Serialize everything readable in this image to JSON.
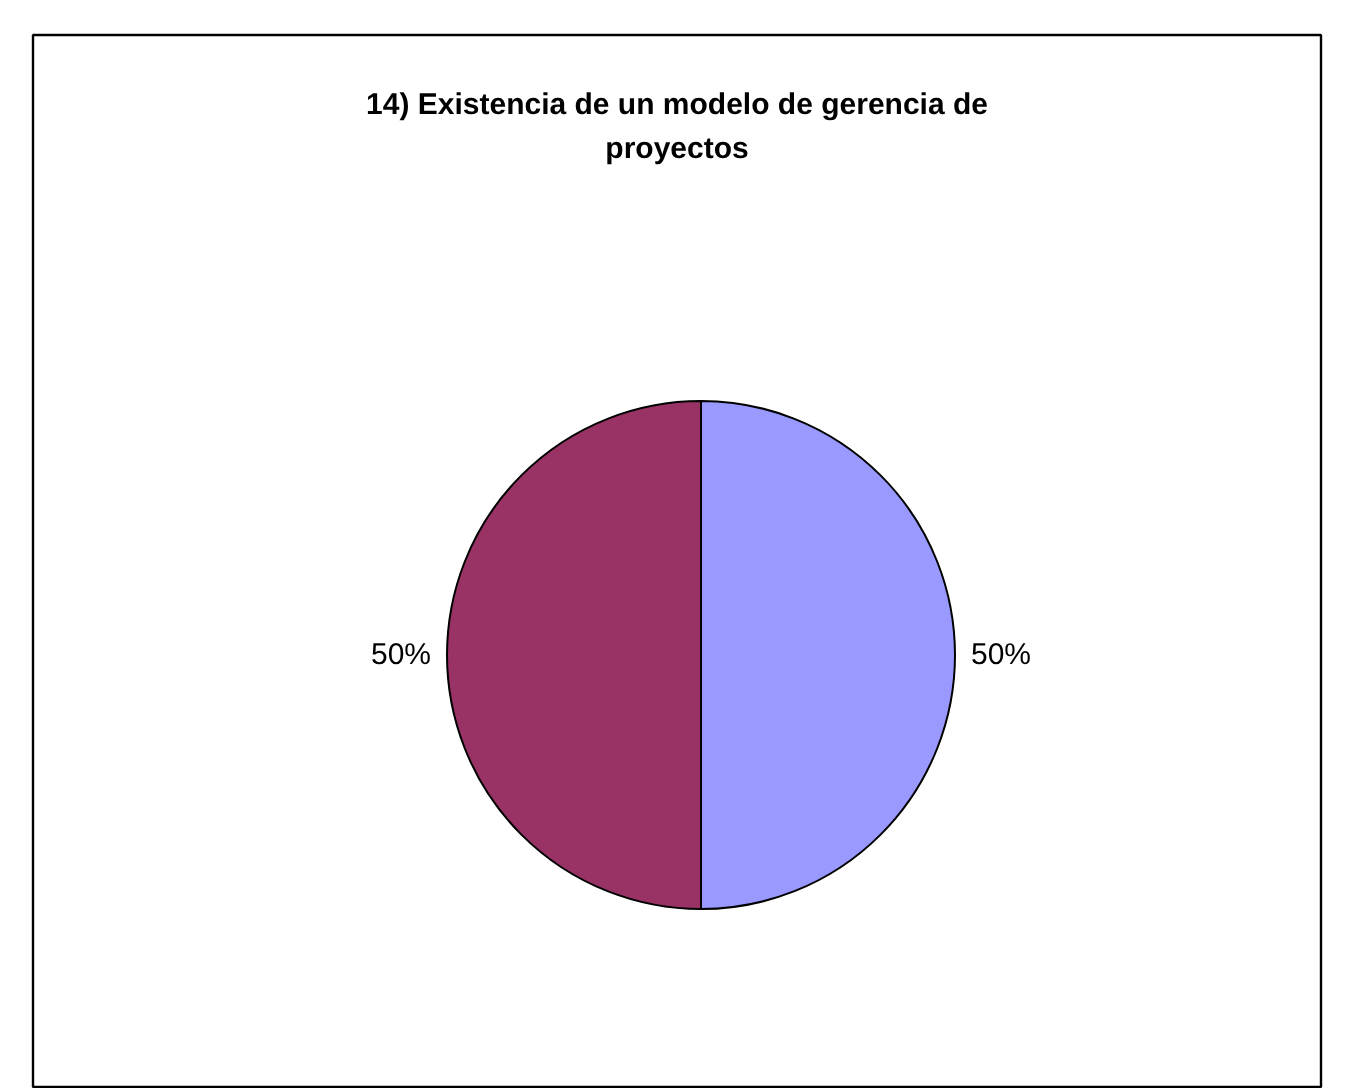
{
  "chart_data": {
    "type": "pie",
    "title": "14) Existencia de un modelo de gerencia de proyectos",
    "categories": [
      null,
      null
    ],
    "values": [
      50,
      50
    ],
    "colors": [
      "#9999ff",
      "#993366"
    ],
    "value_labels": [
      "50%",
      "50%"
    ]
  }
}
